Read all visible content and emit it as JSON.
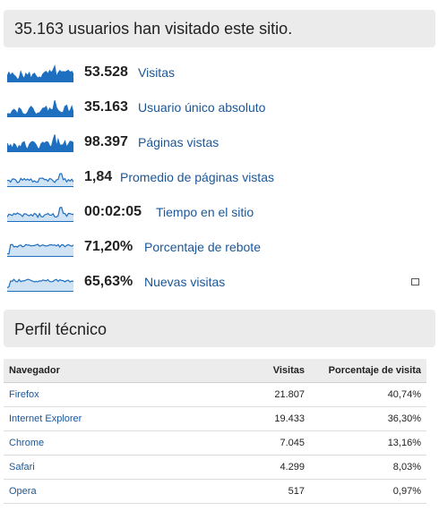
{
  "summary": {
    "title": "35.163 usuarios han visitado este sitio."
  },
  "metrics": [
    {
      "value": "53.528",
      "label": "Visitas",
      "spark": "icon-bars"
    },
    {
      "value": "35.163",
      "label": "Usuario único absoluto",
      "spark": "icon-bars"
    },
    {
      "value": "98.397",
      "label": "Páginas vistas",
      "spark": "icon-bars"
    },
    {
      "value": "1,84",
      "label": "Promedio de páginas vistas",
      "spark": "icon-line"
    },
    {
      "value": "00:02:05",
      "label": "Tiempo en el sitio",
      "spark": "icon-line"
    },
    {
      "value": "71,20%",
      "label": "Porcentaje de rebote",
      "spark": "icon-flat"
    },
    {
      "value": "65,63%",
      "label": "Nuevas visitas",
      "spark": "icon-flat"
    }
  ],
  "tech": {
    "title": "Perfil técnico",
    "headers": [
      "Navegador",
      "Visitas",
      "Porcentaje de visita"
    ],
    "rows": [
      {
        "browser": "Firefox",
        "visits": "21.807",
        "percent": "40,74%"
      },
      {
        "browser": "Internet Explorer",
        "visits": "19.433",
        "percent": "36,30%"
      },
      {
        "browser": "Chrome",
        "visits": "7.045",
        "percent": "13,16%"
      },
      {
        "browser": "Safari",
        "visits": "4.299",
        "percent": "8,03%"
      },
      {
        "browser": "Opera",
        "visits": "517",
        "percent": "0,97%"
      }
    ]
  },
  "colors": {
    "spark": "#1f6fc0",
    "spark_fill": "#cfe3f5",
    "link": "#1a5799"
  }
}
